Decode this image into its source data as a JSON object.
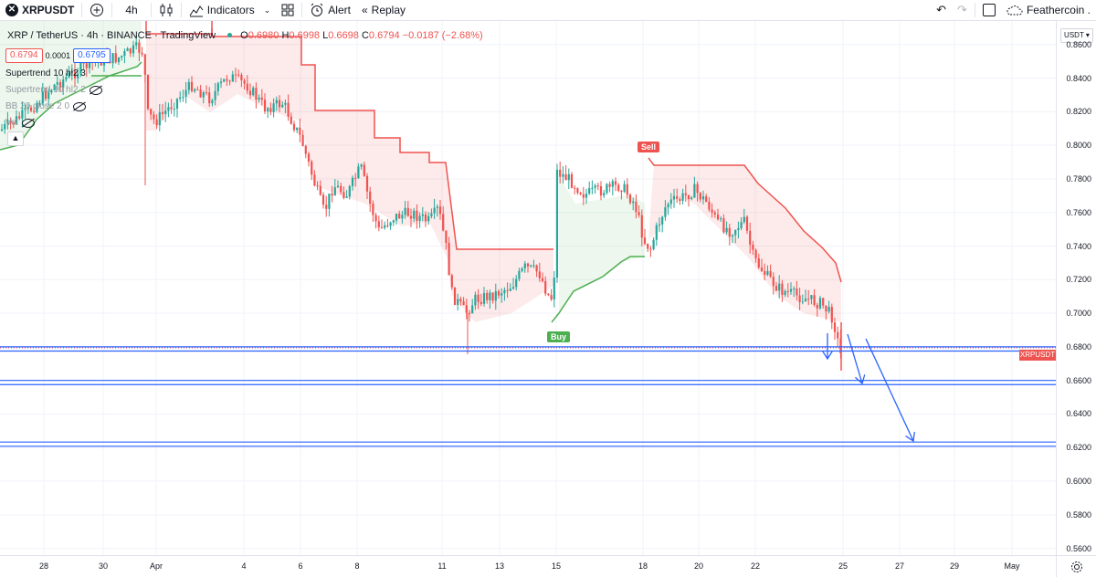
{
  "toolbar": {
    "symbol": "XRPUSDT",
    "interval": "4h",
    "indicators_label": "Indicators",
    "alert_label": "Alert",
    "replay_label": "Replay",
    "layout_name": "Feathercoin ."
  },
  "legend": {
    "pair": "XRP / TetherUS · 4h · BINANCE · TradingView",
    "open_label": "O",
    "open": "0.6980",
    "high_label": "H",
    "high": "0.6998",
    "low_label": "L",
    "low": "0.6698",
    "close_label": "C",
    "close": "0.6794",
    "change": "−0.0187 (−2.68%)"
  },
  "price_boxes": {
    "sell": "0.6794",
    "spread": "0.0001",
    "buy": "0.6795"
  },
  "indicators": [
    {
      "label": "Supertrend 10 hl2 3"
    },
    {
      "label": "Supertrend 10 hl2 2"
    },
    {
      "label": "BB 20 close 2 0"
    },
    {
      "label": "Vol"
    }
  ],
  "price_axis": {
    "currency_button": "USDT",
    "ticks": [
      "0.8600",
      "0.8400",
      "0.8200",
      "0.8000",
      "0.7800",
      "0.7600",
      "0.7400",
      "0.7200",
      "0.7000",
      "0.6800",
      "0.6600",
      "0.6400",
      "0.6200",
      "0.6000",
      "0.5800",
      "0.5600"
    ],
    "last_price_label": "XRPUSDT"
  },
  "time_axis": {
    "ticks": [
      "28",
      "30",
      "Apr",
      "4",
      "6",
      "8",
      "11",
      "13",
      "15",
      "18",
      "20",
      "22",
      "25",
      "27",
      "29",
      "May"
    ]
  },
  "signals": {
    "buy": "Buy",
    "sell": "Sell"
  },
  "chart_data": {
    "type": "candlestick",
    "y_range": [
      0.556,
      0.874
    ],
    "up_color": "#26a69a",
    "down_color": "#ef5350",
    "supertrend_down_color": "#ef5350",
    "supertrend_up_color": "#4caf50",
    "horizontal_levels": [
      0.68,
      0.6775,
      0.66,
      0.6575,
      0.6233,
      0.6208
    ],
    "level_color": "#2962ff",
    "projection_arrows": [
      {
        "from": [
          0.698,
          0.698
        ],
        "to": [
          0.675,
          0.675
        ]
      },
      {
        "from": [
          0.7,
          0.7
        ],
        "to": [
          0.662,
          0.662
        ]
      },
      {
        "from": [
          0.697,
          0.697
        ],
        "to": [
          0.627,
          0.627
        ]
      }
    ]
  }
}
